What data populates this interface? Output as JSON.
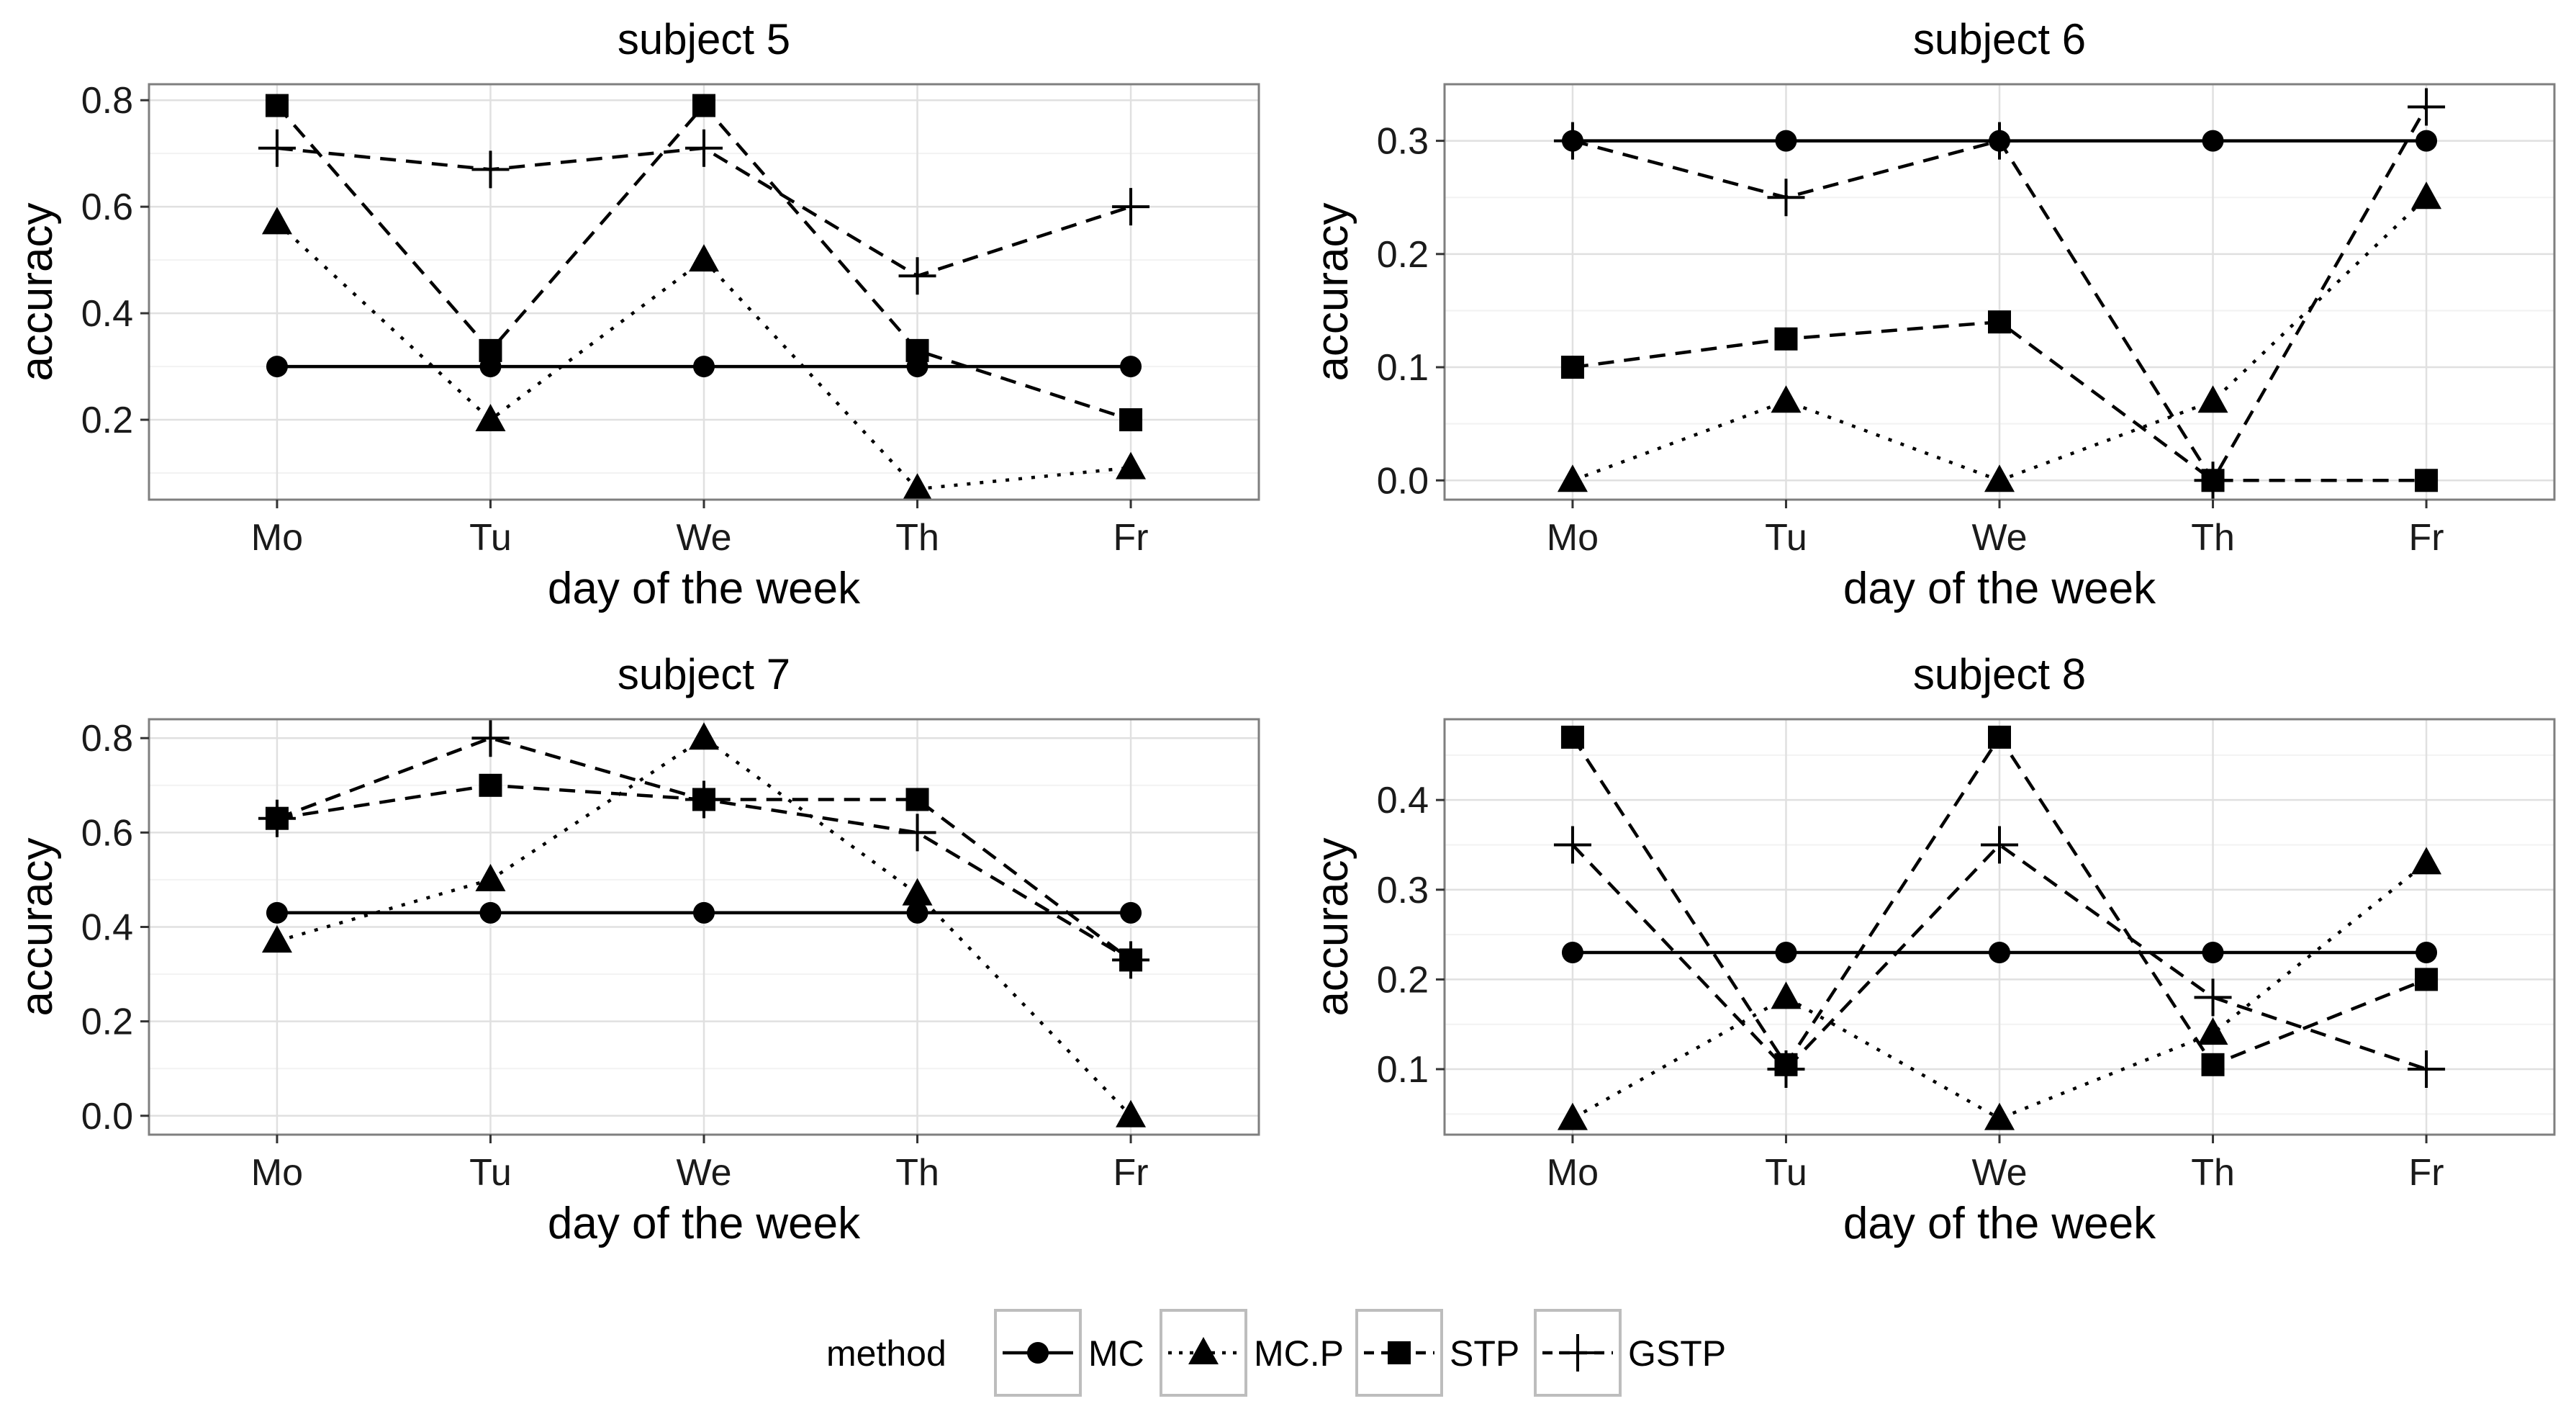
{
  "chart_data": [
    {
      "type": "line",
      "title": "subject 5",
      "xlabel": "day of the week",
      "ylabel": "accuracy",
      "categories": [
        "Mo",
        "Tu",
        "We",
        "Th",
        "Fr"
      ],
      "ylim": [
        0.05,
        0.83
      ],
      "yticks": [
        0.2,
        0.4,
        0.6,
        0.8
      ],
      "ytick_labels": [
        "0.2",
        "0.4",
        "0.6",
        "0.8"
      ],
      "grid": true,
      "series": [
        {
          "name": "MC",
          "values": [
            0.3,
            0.3,
            0.3,
            0.3,
            0.3
          ]
        },
        {
          "name": "MC.P",
          "values": [
            0.57,
            0.2,
            0.5,
            0.07,
            0.11
          ]
        },
        {
          "name": "STP",
          "values": [
            0.79,
            0.33,
            0.79,
            0.33,
            0.2
          ]
        },
        {
          "name": "GSTP",
          "values": [
            0.71,
            0.67,
            0.71,
            0.47,
            0.6
          ]
        }
      ]
    },
    {
      "type": "line",
      "title": "subject 6",
      "xlabel": "day of the week",
      "ylabel": "accuracy",
      "categories": [
        "Mo",
        "Tu",
        "We",
        "Th",
        "Fr"
      ],
      "ylim": [
        -0.017,
        0.35
      ],
      "yticks": [
        0.0,
        0.1,
        0.2,
        0.3
      ],
      "ytick_labels": [
        "0.0",
        "0.1",
        "0.2",
        "0.3"
      ],
      "grid": true,
      "series": [
        {
          "name": "MC",
          "values": [
            0.3,
            0.3,
            0.3,
            0.3,
            0.3
          ]
        },
        {
          "name": "MC.P",
          "values": [
            0.0,
            0.07,
            0.0,
            0.07,
            0.25
          ]
        },
        {
          "name": "STP",
          "values": [
            0.1,
            0.125,
            0.14,
            0.0,
            0.0
          ]
        },
        {
          "name": "GSTP",
          "values": [
            0.3,
            0.25,
            0.3,
            0.0,
            0.33
          ]
        }
      ]
    },
    {
      "type": "line",
      "title": "subject 7",
      "xlabel": "day of the week",
      "ylabel": "accuracy",
      "categories": [
        "Mo",
        "Tu",
        "We",
        "Th",
        "Fr"
      ],
      "ylim": [
        -0.04,
        0.84
      ],
      "yticks": [
        0.0,
        0.2,
        0.4,
        0.6,
        0.8
      ],
      "ytick_labels": [
        "0.0",
        "0.2",
        "0.4",
        "0.6",
        "0.8"
      ],
      "grid": true,
      "series": [
        {
          "name": "MC",
          "values": [
            0.43,
            0.43,
            0.43,
            0.43,
            0.43
          ]
        },
        {
          "name": "MC.P",
          "values": [
            0.37,
            0.5,
            0.8,
            0.47,
            0.0
          ]
        },
        {
          "name": "STP",
          "values": [
            0.63,
            0.7,
            0.67,
            0.67,
            0.33
          ]
        },
        {
          "name": "GSTP",
          "values": [
            0.63,
            0.8,
            0.67,
            0.6,
            0.33
          ]
        }
      ]
    },
    {
      "type": "line",
      "title": "subject 8",
      "xlabel": "day of the week",
      "ylabel": "accuracy",
      "categories": [
        "Mo",
        "Tu",
        "We",
        "Th",
        "Fr"
      ],
      "ylim": [
        0.027,
        0.49
      ],
      "yticks": [
        0.1,
        0.2,
        0.3,
        0.4
      ],
      "ytick_labels": [
        "0.1",
        "0.2",
        "0.3",
        "0.4"
      ],
      "grid": true,
      "series": [
        {
          "name": "MC",
          "values": [
            0.23,
            0.23,
            0.23,
            0.23,
            0.23
          ]
        },
        {
          "name": "MC.P",
          "values": [
            0.045,
            0.18,
            0.045,
            0.14,
            0.33
          ]
        },
        {
          "name": "STP",
          "values": [
            0.47,
            0.105,
            0.47,
            0.105,
            0.2
          ]
        },
        {
          "name": "GSTP",
          "values": [
            0.35,
            0.1,
            0.35,
            0.18,
            0.1
          ]
        }
      ]
    }
  ],
  "legend": {
    "title": "method",
    "position": "bottom",
    "items": [
      {
        "name": "MC",
        "shape": "circle",
        "dash": "solid"
      },
      {
        "name": "MC.P",
        "shape": "triangle",
        "dash": "dotted"
      },
      {
        "name": "STP",
        "shape": "square",
        "dash": "dashed"
      },
      {
        "name": "GSTP",
        "shape": "plus",
        "dash": "dashed"
      }
    ]
  },
  "colors": {
    "line": "#000000",
    "panel_border": "#7f7f7f",
    "grid_major": "#e0e0e0",
    "grid_minor": "#f2f2f2",
    "legend_key_border": "#bdbdbd"
  }
}
